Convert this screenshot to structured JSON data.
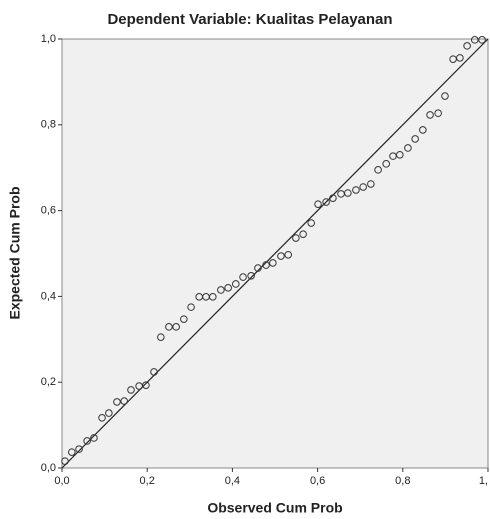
{
  "chart_data": {
    "type": "scatter",
    "title": "Dependent Variable: Kualitas Pelayanan",
    "xlabel": "Observed Cum Prob",
    "ylabel": "Expected Cum Prob",
    "x": [
      0.007,
      0.023,
      0.04,
      0.059,
      0.075,
      0.094,
      0.11,
      0.129,
      0.146,
      0.162,
      0.181,
      0.197,
      0.216,
      0.232,
      0.251,
      0.268,
      0.286,
      0.303,
      0.322,
      0.338,
      0.354,
      0.373,
      0.39,
      0.408,
      0.425,
      0.444,
      0.46,
      0.479,
      0.495,
      0.514,
      0.531,
      0.549,
      0.566,
      0.585,
      0.601,
      0.62,
      0.636,
      0.655,
      0.671,
      0.69,
      0.707,
      0.725,
      0.742,
      0.761,
      0.777,
      0.793,
      0.812,
      0.829,
      0.847,
      0.864,
      0.883,
      0.899,
      0.918,
      0.934,
      0.951,
      0.969,
      0.986
    ],
    "values": [
      0.016,
      0.037,
      0.044,
      0.063,
      0.07,
      0.117,
      0.128,
      0.154,
      0.156,
      0.182,
      0.191,
      0.193,
      0.224,
      0.305,
      0.329,
      0.329,
      0.347,
      0.375,
      0.399,
      0.399,
      0.399,
      0.415,
      0.42,
      0.429,
      0.445,
      0.448,
      0.466,
      0.473,
      0.478,
      0.494,
      0.497,
      0.536,
      0.545,
      0.571,
      0.615,
      0.62,
      0.629,
      0.639,
      0.641,
      0.648,
      0.655,
      0.662,
      0.695,
      0.709,
      0.727,
      0.73,
      0.746,
      0.767,
      0.788,
      0.823,
      0.827,
      0.867,
      0.953,
      0.956,
      0.984,
      0.998,
      0.998
    ],
    "color": "#333333",
    "xlim": [
      0,
      1
    ],
    "ylim": [
      0,
      1
    ],
    "xticks": [
      {
        "value": 0,
        "label": "0,0"
      },
      {
        "value": 0.2,
        "label": "0,2"
      },
      {
        "value": 0.4,
        "label": "0,4"
      },
      {
        "value": 0.6,
        "label": "0,6"
      },
      {
        "value": 0.8,
        "label": "0,8"
      },
      {
        "value": 1,
        "label": "1,"
      }
    ],
    "yticks": [
      {
        "value": 0,
        "label": "0,0"
      },
      {
        "value": 0.2,
        "label": "0,2"
      },
      {
        "value": 0.4,
        "label": "0,4"
      },
      {
        "value": 0.6,
        "label": "0,6"
      },
      {
        "value": 0.8,
        "label": "0,8"
      },
      {
        "value": 1,
        "label": "1,0"
      }
    ]
  }
}
